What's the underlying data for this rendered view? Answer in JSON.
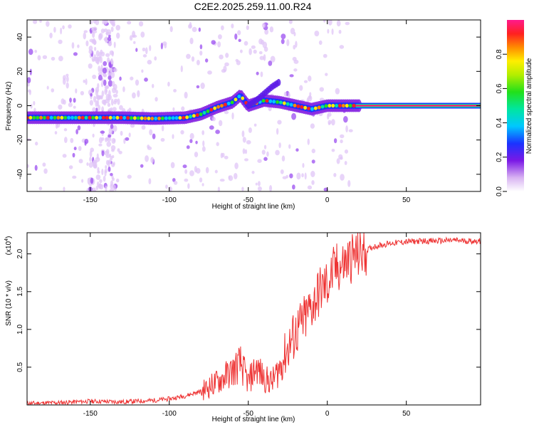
{
  "title": "C2E2.2025.259.11.00.R24",
  "chart_data": [
    {
      "type": "heatmap",
      "title": "C2E2.2025.259.11.00.R24",
      "xlabel": "Height of straight line (km)",
      "ylabel": "Frequency (Hz)",
      "xlim": [
        -190,
        97
      ],
      "ylim": [
        -50,
        50
      ],
      "xticks": [
        -150,
        -100,
        -50,
        0,
        50
      ],
      "yticks": [
        -40,
        -20,
        0,
        20,
        40
      ],
      "colorbar": {
        "label": "Normalized spectral amplitude",
        "range": [
          0,
          1
        ],
        "ticks": [
          0.0,
          0.2,
          0.4,
          0.6,
          0.8
        ]
      },
      "ridge": {
        "x": [
          -190,
          -150,
          -130,
          -110,
          -90,
          -80,
          -70,
          -60,
          -55,
          -50,
          -40,
          -30,
          -20,
          -10,
          0,
          20,
          97
        ],
        "y": [
          -7,
          -7,
          -7,
          -7.5,
          -7,
          -5,
          -1,
          2,
          6,
          0,
          3,
          2,
          0,
          -2,
          0,
          0,
          0
        ]
      },
      "branch": {
        "x": [
          -50,
          -45,
          -40,
          -35,
          -30
        ],
        "y": [
          0,
          3,
          7,
          11,
          14
        ]
      }
    },
    {
      "type": "line",
      "xlabel": "Height of straight line (km)",
      "ylabel": "SNR (10 * v/v)",
      "y_scale_label": "(x10",
      "y_scale_exp": "4",
      "xlim": [
        -190,
        97
      ],
      "ylim": [
        0,
        2.28
      ],
      "xticks": [
        -150,
        -100,
        -50,
        0,
        50
      ],
      "yticks": [
        0.5,
        1.0,
        1.5,
        2.0
      ],
      "line_color": "#ee3333",
      "series": [
        {
          "name": "SNR",
          "x": [
            -190,
            -170,
            -150,
            -130,
            -110,
            -100,
            -90,
            -80,
            -70,
            -60,
            -55,
            -50,
            -45,
            -40,
            -35,
            -30,
            -25,
            -20,
            -15,
            -10,
            -5,
            0,
            5,
            10,
            15,
            20,
            25,
            30,
            35,
            40,
            50,
            60,
            70,
            80,
            90,
            97
          ],
          "values": [
            0.02,
            0.03,
            0.05,
            0.04,
            0.06,
            0.08,
            0.12,
            0.18,
            0.3,
            0.45,
            0.55,
            0.3,
            0.5,
            0.35,
            0.3,
            0.5,
            0.75,
            0.95,
            1.1,
            1.3,
            1.5,
            1.6,
            1.8,
            1.85,
            1.95,
            2.0,
            2.05,
            2.1,
            2.12,
            2.14,
            2.16,
            2.17,
            2.17,
            2.18,
            2.17,
            2.17
          ]
        }
      ]
    }
  ]
}
